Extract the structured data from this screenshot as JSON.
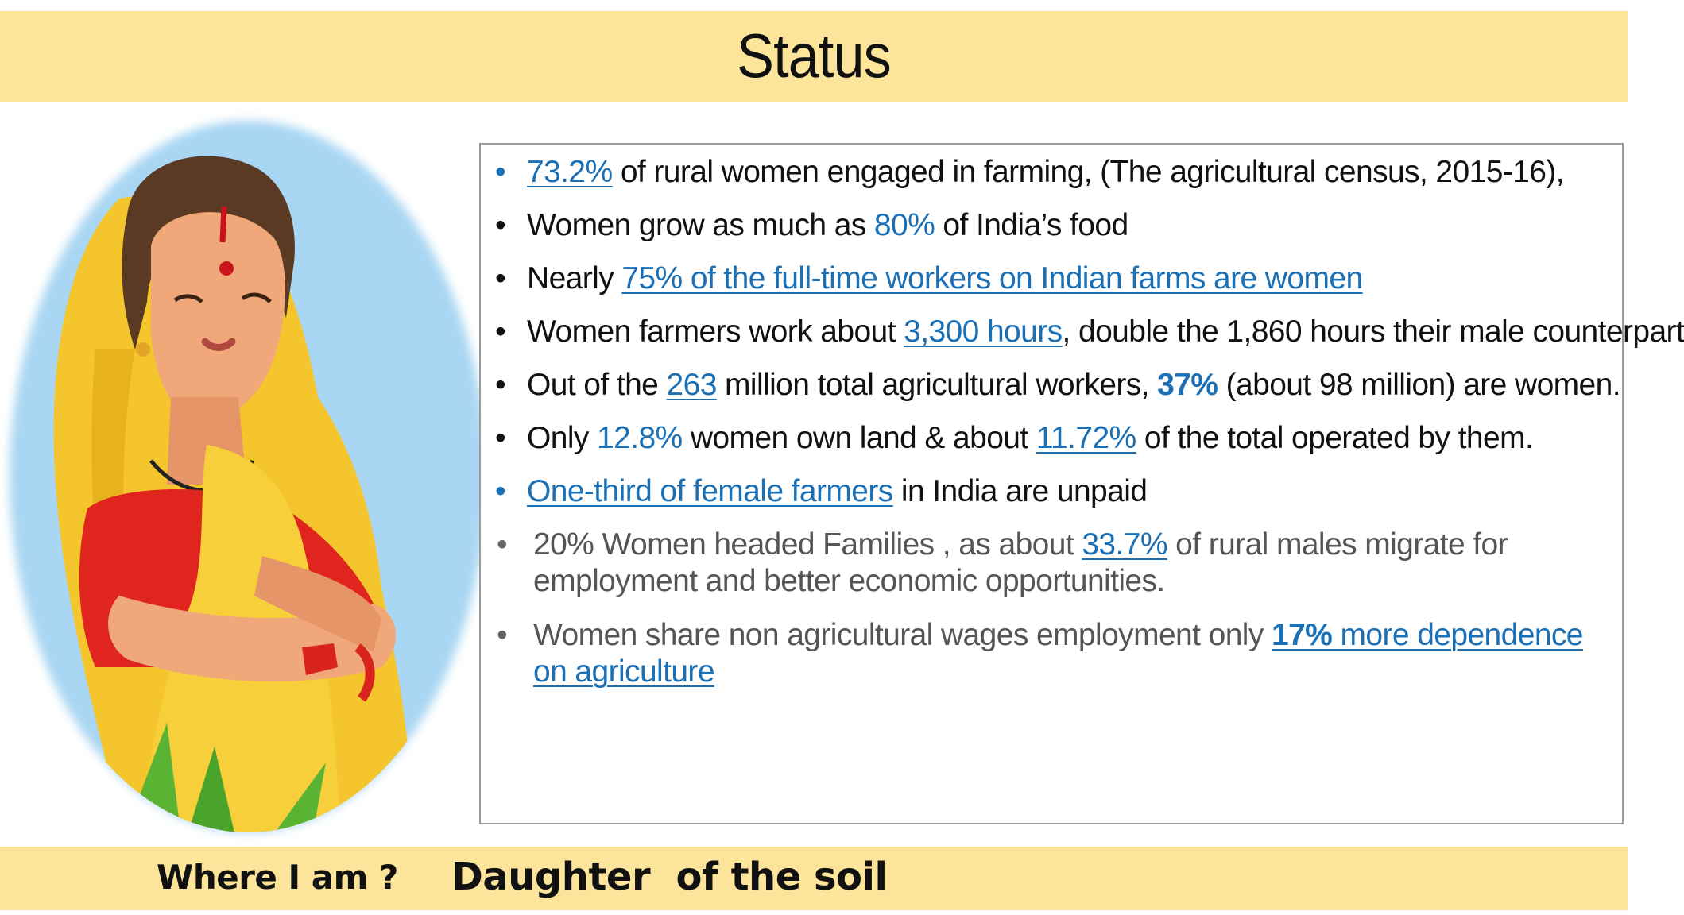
{
  "header": {
    "title": "Status"
  },
  "illustration": {
    "icon": "woman-farmer-illustration"
  },
  "colors": {
    "band": "#fce59b",
    "accent_blue": "#1a6fb5",
    "saree": "#f4c52c",
    "blouse": "#e0251f",
    "sky": "#a9d6f2"
  },
  "bullets": {
    "b1": {
      "num": "73.2%",
      "text": " of rural women engaged in farming, (The agricultural census, 2015-16),"
    },
    "b2": {
      "a": "Women grow as much as ",
      "num": "80%",
      "b": " of India’s food"
    },
    "b3": {
      "a": "Nearly ",
      "link": "75% of the full-time workers on Indian farms are women"
    },
    "b4": {
      "a": "Women farmers work about ",
      "link": "3,300 hours",
      "b": ", double the 1,860 hours their male counterpart"
    },
    "b5": {
      "a": "Out of the ",
      "link": "263",
      "b": " million total agricultural workers, ",
      "bold": "37%",
      "c": " (about 98 million) are women."
    },
    "b6": {
      "a": "Only ",
      "num": "12.8%",
      "b": " women own land & about ",
      "link": "11.72%",
      "c": " of the total operated by them."
    },
    "b7": {
      "link": "One-third of female farmers",
      "b": " in India are unpaid"
    },
    "b8": {
      "a": "20% Women headed Families  , as about ",
      "link": "33.7%",
      "b": " of rural males migrate for employment and better economic opportunities."
    },
    "b9": {
      "a": "Women share non agricultural wages employment only ",
      "bold": "17%",
      "link": " more dependence on agriculture"
    }
  },
  "footer": {
    "left": "Where I am ?",
    "right": "Daughter  of the soil"
  }
}
